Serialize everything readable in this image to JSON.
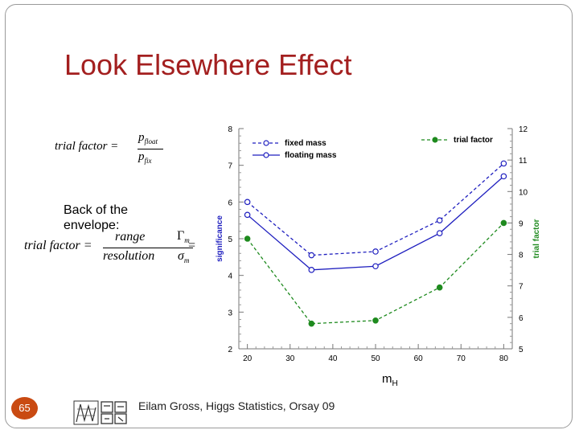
{
  "slide": {
    "title": "Look Elsewhere Effect",
    "envelope_label": "Back of the envelope:",
    "page_number": "65",
    "footer": "Eilam Gross, Higgs Statistics, Orsay 09"
  },
  "formulas": {
    "f1_lhs": "trial factor =",
    "f1_num": "p",
    "f1_num_sub": "float",
    "f1_den": "p",
    "f1_den_sub": "fix",
    "f2_lhs": "trial factor =",
    "f2_num1": "range",
    "f2_den1": "resolution",
    "f2_eq": "=",
    "f2_num2": "Γ",
    "f2_num2_sub": "m",
    "f2_den2": "σ",
    "f2_den2_sub": "m"
  },
  "chart_data": {
    "type": "line",
    "x": [
      20,
      35,
      50,
      65,
      80
    ],
    "xlabel": "m",
    "xlabel_sub": "H",
    "ylabel": "significance",
    "y2label": "trial factor",
    "xlim": [
      18,
      82
    ],
    "ylim": [
      2,
      8
    ],
    "y2lim": [
      5,
      12
    ],
    "x_ticks": [
      "20",
      "30",
      "40",
      "50",
      "60",
      "70",
      "80"
    ],
    "y_ticks": [
      "2",
      "3",
      "4",
      "5",
      "6",
      "7",
      "8"
    ],
    "y2_ticks": [
      "5",
      "6",
      "7",
      "8",
      "9",
      "10",
      "11",
      "12"
    ],
    "series": [
      {
        "name": "fixed mass",
        "axis": "left",
        "color": "#1f1fbf",
        "dash": true,
        "marker": "open",
        "values": [
          6.0,
          4.55,
          4.65,
          5.5,
          7.05
        ]
      },
      {
        "name": "floating mass",
        "axis": "left",
        "color": "#1f1fbf",
        "dash": false,
        "marker": "open",
        "values": [
          5.65,
          4.15,
          4.25,
          5.15,
          6.7
        ]
      },
      {
        "name": "trial factor",
        "axis": "right",
        "color": "#1e8a1e",
        "dash": true,
        "marker": "filled",
        "values": [
          8.5,
          5.8,
          5.9,
          6.95,
          9.0
        ]
      }
    ]
  }
}
